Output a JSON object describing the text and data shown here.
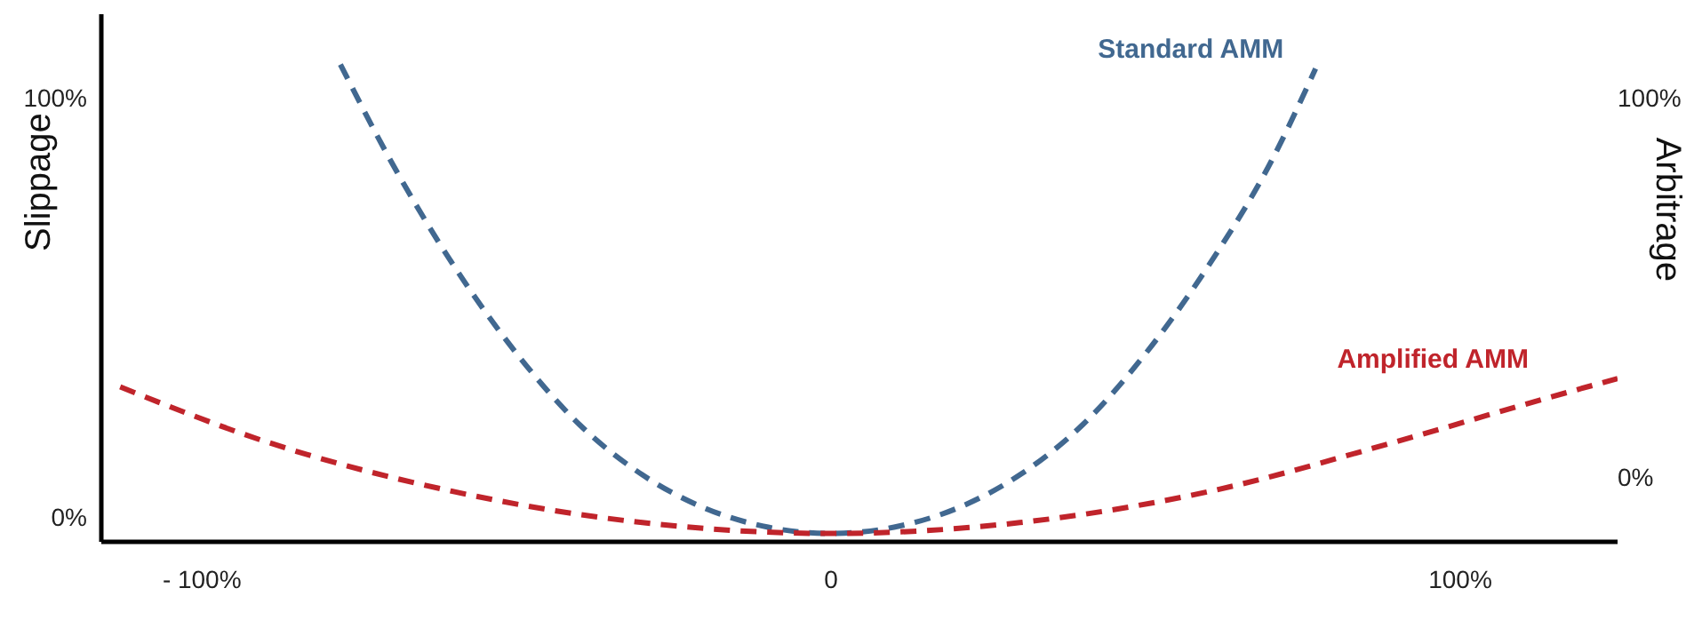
{
  "chart_data": {
    "type": "line",
    "ylabel": "Slippage",
    "y2label": "Arbitrage",
    "xlim": [
      -116,
      125
    ],
    "xticks": [
      {
        "value": -100,
        "label": "- 100%"
      },
      {
        "value": 0,
        "label": "0"
      },
      {
        "value": 100,
        "label": "100%"
      }
    ],
    "ylim": [
      -6,
      120
    ],
    "yticks": [
      {
        "value": 0,
        "label": "0%"
      },
      {
        "value": 100,
        "label": "100%"
      }
    ],
    "y2lim": [
      -17,
      122
    ],
    "y2ticks": [
      {
        "value": 0,
        "label": "0%"
      },
      {
        "value": 100,
        "label": "100%"
      }
    ],
    "marker": "none",
    "line_style": "dashed",
    "series": [
      {
        "name": "Standard AMM",
        "color": "#416890",
        "x": [
          -78,
          -70,
          -60,
          -50,
          -40,
          -30,
          -20,
          -10,
          0,
          10,
          20,
          30,
          40,
          50,
          60,
          70,
          77
        ],
        "values": [
          108,
          85,
          60,
          39,
          22,
          10,
          2,
          -2.5,
          -4,
          -2.5,
          2,
          10,
          22,
          39,
          60,
          85,
          107
        ]
      },
      {
        "name": "Amplified AMM",
        "color": "#c0242b",
        "x": [
          -113,
          -90,
          -60,
          -30,
          0,
          30,
          60,
          90,
          113,
          125
        ],
        "values": [
          31,
          18,
          6,
          -1.4,
          -4,
          -1.4,
          6,
          18,
          28,
          33
        ]
      }
    ]
  }
}
